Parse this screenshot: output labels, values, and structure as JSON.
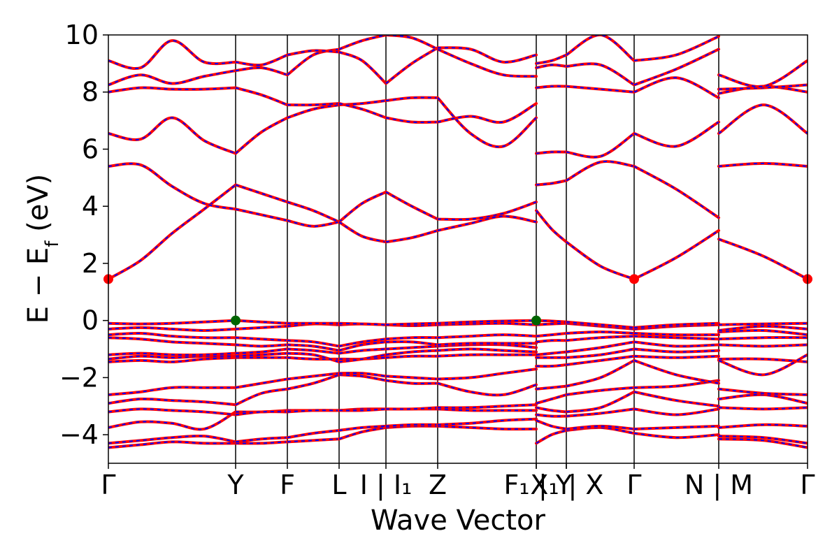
{
  "chart_data": {
    "type": "line",
    "title": "",
    "xlabel": "Wave Vector",
    "ylabel_main": "E − E",
    "ylabel_sub": "f",
    "ylabel_unit": " (eV)",
    "ylim": [
      -5,
      10
    ],
    "yticks": [
      {
        "value": 10,
        "label": "10"
      },
      {
        "value": 8,
        "label": "8"
      },
      {
        "value": 6,
        "label": "6"
      },
      {
        "value": 4,
        "label": "4"
      },
      {
        "value": 2,
        "label": "2"
      },
      {
        "value": 0,
        "label": "0"
      },
      {
        "value": -2,
        "label": "−2"
      },
      {
        "value": -4,
        "label": "−4"
      }
    ],
    "xlim": [
      0,
      10.0
    ],
    "kpoints": [
      {
        "x": 0.0,
        "label": "Γ"
      },
      {
        "x": 1.82,
        "label": "Y"
      },
      {
        "x": 2.56,
        "label": "F"
      },
      {
        "x": 3.3,
        "label": "L"
      },
      {
        "x": 3.97,
        "label": "I | I₁"
      },
      {
        "x": 4.71,
        "label": "Z"
      },
      {
        "x": 6.12,
        "label": "F₁"
      },
      {
        "x": 6.12,
        "label": "X₁"
      },
      {
        "x": 6.55,
        "label": "| Y"
      },
      {
        "x": 6.55,
        "label": "| X"
      },
      {
        "x": 7.52,
        "label": "Γ"
      },
      {
        "x": 8.73,
        "label": "N | M"
      },
      {
        "x": 10.0,
        "label": "Γ"
      }
    ],
    "kpoint_label_style": "first",
    "vlines": [
      1.82,
      2.56,
      3.3,
      3.97,
      4.71,
      6.12,
      6.55,
      7.52,
      8.73
    ],
    "series_colors": {
      "dft": "#ff0000",
      "wannier": "#0000ff"
    },
    "special_points": [
      {
        "x": 0.0,
        "y": 1.45,
        "color": "#ff0000",
        "kind": "cbm"
      },
      {
        "x": 7.52,
        "y": 1.45,
        "color": "#ff0000",
        "kind": "cbm"
      },
      {
        "x": 10.0,
        "y": 1.45,
        "color": "#ff0000",
        "kind": "cbm"
      },
      {
        "x": 1.82,
        "y": 0.0,
        "color": "#006400",
        "kind": "vbm"
      },
      {
        "x": 6.12,
        "y": 0.0,
        "color": "#006400",
        "kind": "vbm"
      }
    ],
    "segments": [
      {
        "x": [
          0.0,
          0.46,
          0.91,
          1.37,
          1.82
        ],
        "bands": [
          [
            -4.45,
            -4.35,
            -4.25,
            -4.3,
            -4.3
          ],
          [
            -4.3,
            -4.2,
            -4.1,
            -4.05,
            -4.25
          ],
          [
            -3.75,
            -3.55,
            -3.6,
            -3.8,
            -3.2
          ],
          [
            -3.2,
            -3.1,
            -3.15,
            -3.2,
            -3.3
          ],
          [
            -2.9,
            -2.75,
            -2.8,
            -2.85,
            -2.95
          ],
          [
            -2.6,
            -2.5,
            -2.35,
            -2.35,
            -2.35
          ],
          [
            -1.45,
            -1.4,
            -1.45,
            -1.35,
            -1.3
          ],
          [
            -1.35,
            -1.25,
            -1.3,
            -1.25,
            -1.25
          ],
          [
            -1.2,
            -1.15,
            -1.2,
            -1.2,
            -1.15
          ],
          [
            -0.6,
            -0.65,
            -0.75,
            -0.8,
            -0.85
          ],
          [
            -0.5,
            -0.45,
            -0.55,
            -0.6,
            -0.6
          ],
          [
            -0.3,
            -0.25,
            -0.3,
            -0.35,
            -0.3
          ],
          [
            -0.1,
            -0.12,
            -0.1,
            -0.05,
            0.0
          ],
          [
            1.45,
            2.1,
            3.05,
            3.9,
            4.75
          ],
          [
            5.4,
            5.45,
            4.7,
            4.1,
            3.9
          ],
          [
            6.55,
            6.35,
            7.1,
            6.3,
            5.85
          ],
          [
            8.0,
            8.15,
            8.1,
            8.1,
            8.15
          ],
          [
            8.25,
            8.6,
            8.3,
            8.55,
            8.75
          ],
          [
            9.1,
            8.85,
            9.8,
            9.05,
            9.05
          ]
        ]
      },
      {
        "x": [
          1.82,
          2.19,
          2.56
        ],
        "bands": [
          [
            -4.3,
            -4.3,
            -4.25
          ],
          [
            -4.25,
            -4.15,
            -4.1
          ],
          [
            -3.2,
            -3.2,
            -3.15
          ],
          [
            -3.3,
            -3.2,
            -3.2
          ],
          [
            -2.95,
            -2.55,
            -2.4
          ],
          [
            -2.35,
            -2.2,
            -2.05
          ],
          [
            -1.3,
            -1.3,
            -1.3
          ],
          [
            -1.25,
            -1.2,
            -1.15
          ],
          [
            -1.15,
            -1.1,
            -1.0
          ],
          [
            -0.85,
            -0.9,
            -0.85
          ],
          [
            -0.6,
            -0.65,
            -0.7
          ],
          [
            -0.3,
            -0.25,
            -0.2
          ],
          [
            0.0,
            -0.05,
            -0.1
          ],
          [
            4.75,
            4.45,
            4.15
          ],
          [
            3.9,
            3.7,
            3.5
          ],
          [
            5.85,
            6.6,
            7.1
          ],
          [
            8.15,
            7.9,
            7.55
          ],
          [
            8.75,
            8.85,
            8.6
          ],
          [
            9.05,
            8.95,
            9.3
          ]
        ]
      },
      {
        "x": [
          2.56,
          2.93,
          3.3
        ],
        "bands": [
          [
            -4.25,
            -4.2,
            -4.15
          ],
          [
            -4.1,
            -3.95,
            -3.85
          ],
          [
            -3.15,
            -3.15,
            -3.15
          ],
          [
            -3.2,
            -3.15,
            -3.15
          ],
          [
            -2.4,
            -2.2,
            -1.9
          ],
          [
            -2.05,
            -1.95,
            -1.85
          ],
          [
            -1.3,
            -1.35,
            -1.35
          ],
          [
            -1.15,
            -1.2,
            -1.45
          ],
          [
            -1.0,
            -1.05,
            -1.15
          ],
          [
            -0.85,
            -0.9,
            -1.05
          ],
          [
            -0.7,
            -0.75,
            -0.9
          ],
          [
            -0.2,
            -0.12,
            -0.15
          ],
          [
            -0.1,
            -0.1,
            -0.1
          ],
          [
            4.15,
            3.85,
            3.45
          ],
          [
            3.5,
            3.3,
            3.45
          ],
          [
            7.1,
            7.4,
            7.55
          ],
          [
            7.55,
            7.55,
            7.6
          ],
          [
            8.6,
            9.3,
            9.5
          ],
          [
            9.3,
            9.45,
            9.4
          ]
        ]
      },
      {
        "x": [
          3.3,
          3.63,
          3.97
        ],
        "bands": [
          [
            -4.15,
            -3.9,
            -3.75
          ],
          [
            -3.85,
            -3.75,
            -3.7
          ],
          [
            -3.15,
            -3.1,
            -3.1
          ],
          [
            -3.15,
            -3.15,
            -3.1
          ],
          [
            -1.9,
            -1.95,
            -2.1
          ],
          [
            -1.85,
            -1.85,
            -1.95
          ],
          [
            -1.35,
            -1.35,
            -1.3
          ],
          [
            -1.45,
            -1.35,
            -1.2
          ],
          [
            -1.15,
            -1.05,
            -1.0
          ],
          [
            -1.05,
            -0.85,
            -0.75
          ],
          [
            -0.9,
            -0.75,
            -0.65
          ],
          [
            -0.15,
            -0.12,
            -0.15
          ],
          [
            -0.1,
            -0.12,
            -0.15
          ],
          [
            3.45,
            4.1,
            4.5
          ],
          [
            3.45,
            2.95,
            2.75
          ],
          [
            7.55,
            7.6,
            7.7
          ],
          [
            7.6,
            7.4,
            7.1
          ],
          [
            9.5,
            9.8,
            10.0
          ],
          [
            9.4,
            9.1,
            8.3
          ]
        ]
      },
      {
        "x": [
          3.97,
          4.34,
          4.71
        ],
        "bands": [
          [
            -3.75,
            -3.7,
            -3.7
          ],
          [
            -3.7,
            -3.65,
            -3.65
          ],
          [
            -3.1,
            -3.1,
            -3.1
          ],
          [
            -3.1,
            -3.1,
            -3.05
          ],
          [
            -2.1,
            -2.2,
            -2.2
          ],
          [
            -1.95,
            -2.0,
            -2.05
          ],
          [
            -1.3,
            -1.25,
            -1.25
          ],
          [
            -1.2,
            -1.1,
            -1.05
          ],
          [
            -1.0,
            -0.95,
            -0.9
          ],
          [
            -0.75,
            -0.75,
            -0.85
          ],
          [
            -0.65,
            -0.6,
            -0.6
          ],
          [
            -0.15,
            -0.18,
            -0.15
          ],
          [
            -0.15,
            -0.12,
            -0.1
          ],
          [
            4.5,
            4.0,
            3.55
          ],
          [
            2.75,
            2.9,
            3.15
          ],
          [
            7.7,
            7.8,
            7.8
          ],
          [
            7.1,
            6.95,
            6.95
          ],
          [
            10.0,
            9.9,
            9.5
          ],
          [
            8.3,
            9.0,
            9.55
          ]
        ]
      },
      {
        "x": [
          4.71,
          5.18,
          5.65,
          6.12
        ],
        "bands": [
          [
            -3.7,
            -3.75,
            -3.8,
            -3.8
          ],
          [
            -3.65,
            -3.6,
            -3.5,
            -3.45
          ],
          [
            -3.1,
            -3.15,
            -3.15,
            -3.15
          ],
          [
            -3.05,
            -3.05,
            -3.0,
            -2.95
          ],
          [
            -2.2,
            -2.5,
            -2.6,
            -2.25
          ],
          [
            -2.05,
            -2.0,
            -1.85,
            -1.7
          ],
          [
            -1.25,
            -1.2,
            -1.2,
            -1.2
          ],
          [
            -1.05,
            -1.0,
            -1.05,
            -1.1
          ],
          [
            -0.9,
            -0.85,
            -0.85,
            -0.95
          ],
          [
            -0.85,
            -0.8,
            -0.8,
            -0.8
          ],
          [
            -0.6,
            -0.55,
            -0.5,
            -0.55
          ],
          [
            -0.15,
            -0.12,
            -0.1,
            -0.15
          ],
          [
            -0.1,
            -0.05,
            -0.02,
            0.0
          ],
          [
            3.55,
            3.55,
            3.75,
            4.15
          ],
          [
            3.15,
            3.4,
            3.65,
            3.45
          ],
          [
            7.8,
            6.55,
            6.1,
            7.1
          ],
          [
            6.95,
            7.15,
            6.95,
            7.6
          ],
          [
            9.5,
            9.0,
            8.6,
            8.55
          ],
          [
            9.55,
            9.5,
            9.05,
            9.3
          ]
        ]
      },
      {
        "x": [
          6.12,
          6.34,
          6.55
        ],
        "bands": [
          [
            -4.3,
            -4.0,
            -3.85
          ],
          [
            -3.5,
            -3.7,
            -3.8
          ],
          [
            -3.3,
            -3.35,
            -3.35
          ],
          [
            -3.05,
            -3.15,
            -3.2
          ],
          [
            -2.9,
            -2.75,
            -2.6
          ],
          [
            -2.4,
            -2.35,
            -2.3
          ],
          [
            -1.6,
            -1.6,
            -1.55
          ],
          [
            -1.3,
            -1.3,
            -1.3
          ],
          [
            -1.2,
            -1.15,
            -1.1
          ],
          [
            -0.75,
            -0.7,
            -0.7
          ],
          [
            -0.55,
            -0.5,
            -0.45
          ],
          [
            -0.15,
            -0.12,
            -0.1
          ],
          [
            0.0,
            -0.02,
            -0.05
          ],
          [
            3.85,
            3.2,
            2.75
          ],
          [
            4.75,
            4.8,
            4.9
          ],
          [
            5.85,
            5.9,
            5.9
          ],
          [
            8.15,
            8.2,
            8.2
          ],
          [
            8.85,
            8.95,
            8.9
          ],
          [
            9.0,
            9.1,
            9.3
          ]
        ]
      },
      {
        "x": [
          6.55,
          7.04,
          7.52
        ],
        "bands": [
          [
            -3.85,
            -3.75,
            -3.95
          ],
          [
            -3.8,
            -3.7,
            -3.8
          ],
          [
            -3.35,
            -3.25,
            -3.1
          ],
          [
            -3.2,
            -3.05,
            -2.5
          ],
          [
            -2.6,
            -2.45,
            -2.35
          ],
          [
            -2.3,
            -2.0,
            -1.4
          ],
          [
            -1.55,
            -1.4,
            -1.25
          ],
          [
            -1.3,
            -1.2,
            -1.0
          ],
          [
            -1.1,
            -0.95,
            -0.75
          ],
          [
            -0.7,
            -0.6,
            -0.55
          ],
          [
            -0.45,
            -0.4,
            -0.45
          ],
          [
            -0.1,
            -0.2,
            -0.3
          ],
          [
            -0.05,
            -0.15,
            -0.25
          ],
          [
            2.75,
            1.9,
            1.45
          ],
          [
            4.9,
            5.55,
            5.4
          ],
          [
            5.9,
            5.75,
            6.55
          ],
          [
            8.2,
            8.1,
            8.0
          ],
          [
            8.9,
            8.95,
            8.25
          ],
          [
            9.3,
            10.0,
            9.1
          ]
        ]
      },
      {
        "x": [
          7.52,
          8.12,
          8.73
        ],
        "bands": [
          [
            -3.95,
            -4.1,
            -4.0
          ],
          [
            -3.8,
            -3.75,
            -3.7
          ],
          [
            -3.1,
            -3.3,
            -3.1
          ],
          [
            -2.5,
            -2.8,
            -3.0
          ],
          [
            -2.35,
            -2.3,
            -2.1
          ],
          [
            -1.4,
            -1.9,
            -2.2
          ],
          [
            -1.25,
            -1.3,
            -1.25
          ],
          [
            -1.0,
            -1.1,
            -1.05
          ],
          [
            -0.75,
            -0.9,
            -0.85
          ],
          [
            -0.55,
            -0.6,
            -0.65
          ],
          [
            -0.45,
            -0.5,
            -0.5
          ],
          [
            -0.3,
            -0.2,
            -0.15
          ],
          [
            -0.25,
            -0.15,
            -0.1
          ],
          [
            1.45,
            2.2,
            3.15
          ],
          [
            5.4,
            4.6,
            3.6
          ],
          [
            6.55,
            6.1,
            6.95
          ],
          [
            8.0,
            8.5,
            7.8
          ],
          [
            8.25,
            8.8,
            9.5
          ],
          [
            9.1,
            9.3,
            9.95
          ]
        ]
      },
      {
        "x": [
          8.73,
          9.37,
          10.0
        ],
        "bands": [
          [
            -4.15,
            -4.2,
            -4.45
          ],
          [
            -4.05,
            -4.1,
            -4.3
          ],
          [
            -3.75,
            -3.65,
            -3.7
          ],
          [
            -3.05,
            -3.1,
            -3.05
          ],
          [
            -2.75,
            -2.6,
            -2.9
          ],
          [
            -2.4,
            -2.55,
            -2.6
          ],
          [
            -1.35,
            -1.35,
            -1.45
          ],
          [
            -1.4,
            -1.9,
            -1.2
          ],
          [
            -0.85,
            -0.9,
            -0.85
          ],
          [
            -0.65,
            -0.6,
            -0.6
          ],
          [
            -0.4,
            -0.35,
            -0.5
          ],
          [
            -0.35,
            -0.2,
            -0.3
          ],
          [
            -0.15,
            -0.12,
            -0.1
          ],
          [
            2.85,
            2.25,
            1.45
          ],
          [
            5.4,
            5.5,
            5.4
          ],
          [
            6.55,
            7.55,
            6.55
          ],
          [
            7.95,
            8.2,
            8.0
          ],
          [
            8.1,
            8.15,
            8.25
          ],
          [
            8.6,
            8.2,
            9.1
          ]
        ]
      }
    ]
  }
}
